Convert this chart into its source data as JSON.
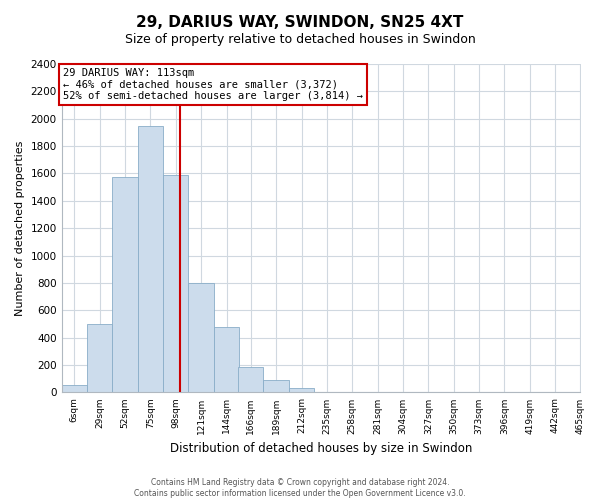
{
  "title": "29, DARIUS WAY, SWINDON, SN25 4XT",
  "subtitle": "Size of property relative to detached houses in Swindon",
  "xlabel": "Distribution of detached houses by size in Swindon",
  "ylabel": "Number of detached properties",
  "bar_labels": [
    "6sqm",
    "29sqm",
    "52sqm",
    "75sqm",
    "98sqm",
    "121sqm",
    "144sqm",
    "166sqm",
    "189sqm",
    "212sqm",
    "235sqm",
    "258sqm",
    "281sqm",
    "304sqm",
    "327sqm",
    "350sqm",
    "373sqm",
    "396sqm",
    "419sqm",
    "442sqm",
    "465sqm"
  ],
  "bar_values": [
    55,
    500,
    1575,
    1950,
    1590,
    800,
    475,
    185,
    90,
    30,
    5,
    0,
    0,
    0,
    0,
    0,
    0,
    0,
    0,
    0,
    0
  ],
  "bar_color": "#ccdcec",
  "bar_edge_color": "#89adc8",
  "ylim": [
    0,
    2400
  ],
  "yticks": [
    0,
    200,
    400,
    600,
    800,
    1000,
    1200,
    1400,
    1600,
    1800,
    2000,
    2200,
    2400
  ],
  "property_line_x": 113,
  "property_line_label": "29 DARIUS WAY: 113sqm",
  "annotation_line1": "← 46% of detached houses are smaller (3,372)",
  "annotation_line2": "52% of semi-detached houses are larger (3,814) →",
  "annotation_box_color": "#ffffff",
  "annotation_box_edge": "#cc0000",
  "property_line_color": "#cc0000",
  "footer_line1": "Contains HM Land Registry data © Crown copyright and database right 2024.",
  "footer_line2": "Contains public sector information licensed under the Open Government Licence v3.0.",
  "bin_edges": [
    6,
    29,
    52,
    75,
    98,
    121,
    144,
    166,
    189,
    212,
    235,
    258,
    281,
    304,
    327,
    350,
    373,
    396,
    419,
    442,
    465
  ],
  "grid_color": "#d0d8e0",
  "spine_color": "#b0b8c0"
}
